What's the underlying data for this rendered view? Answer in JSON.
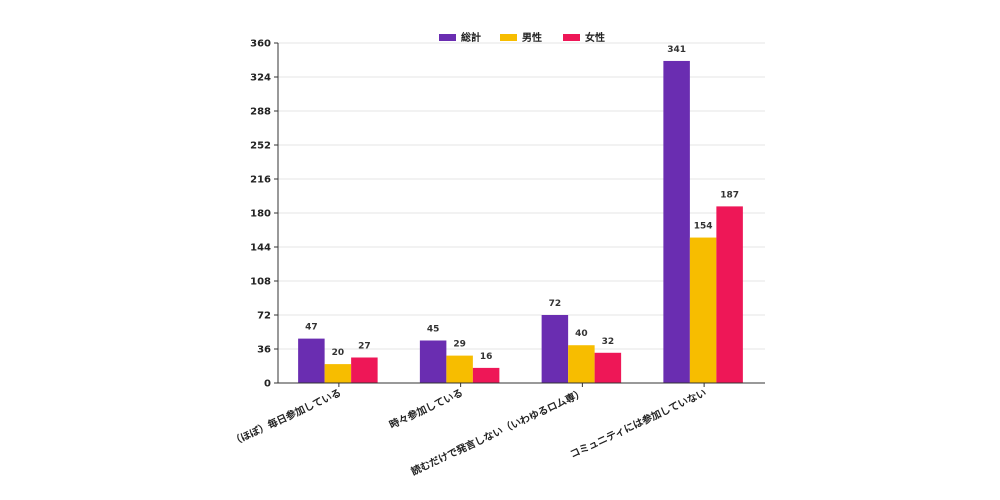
{
  "chart_data": {
    "type": "bar",
    "categories": [
      "（ほぼ）毎日参加している",
      "時々参加している",
      "読むだけで発言しない（いわゆるロム専）",
      "コミュニティには参加していない"
    ],
    "series": [
      {
        "name": "総計",
        "color": "#6a2db1",
        "values": [
          47,
          45,
          72,
          341
        ]
      },
      {
        "name": "男性",
        "color": "#f7bd00",
        "values": [
          20,
          29,
          40,
          154
        ]
      },
      {
        "name": "女性",
        "color": "#ee1757",
        "values": [
          27,
          16,
          32,
          187
        ]
      }
    ],
    "ylim": [
      0,
      360
    ],
    "yticks": [
      0,
      36,
      72,
      108,
      144,
      180,
      216,
      252,
      288,
      324,
      360
    ],
    "grid": true,
    "legend": "top-center"
  }
}
